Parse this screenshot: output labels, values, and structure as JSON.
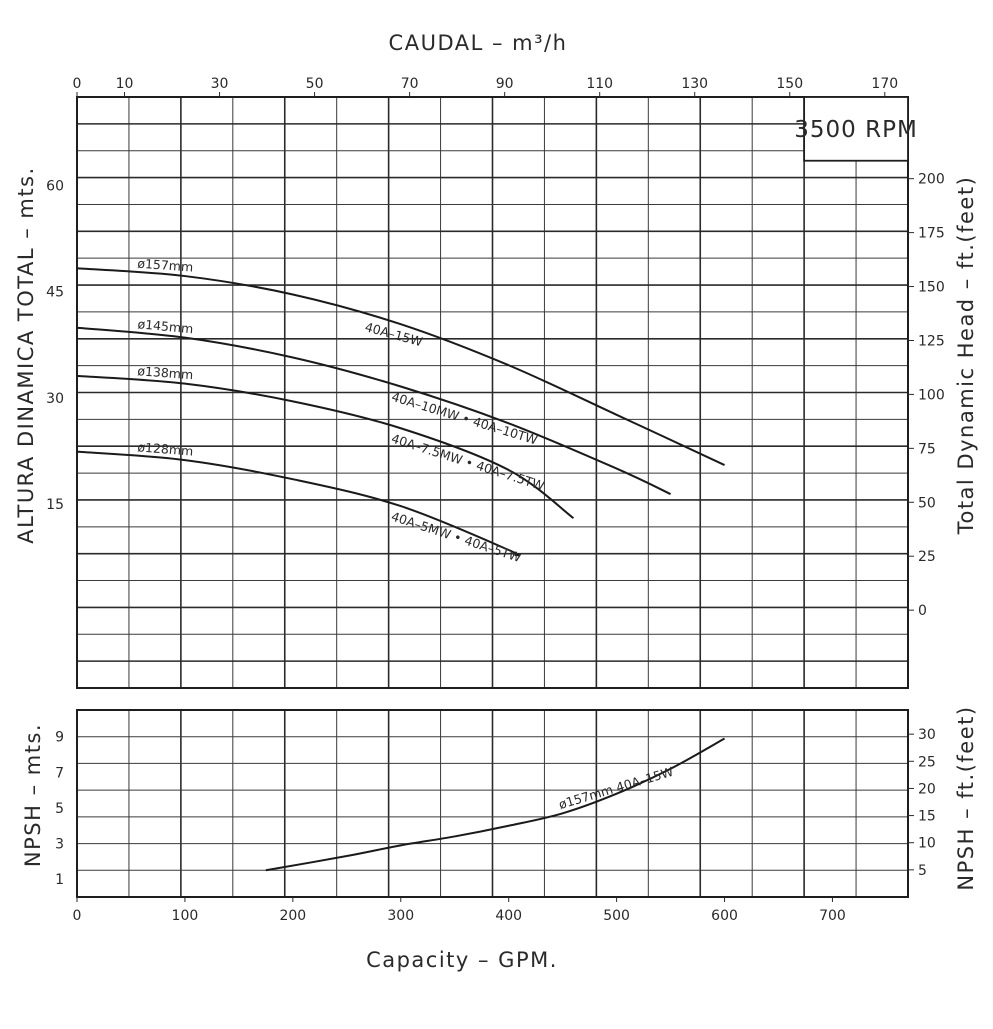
{
  "chart_data": [
    {
      "type": "line",
      "top_axis": {
        "title": "CAUDAL – m³/h",
        "ticks": [
          0,
          10,
          30,
          50,
          70,
          90,
          110,
          130,
          150,
          170
        ]
      },
      "x_axis": {
        "ticks": [
          0,
          100,
          200,
          300,
          400,
          500,
          600,
          700
        ],
        "xlim": [
          0,
          770
        ]
      },
      "left_axis": {
        "title": "ALTURA DINAMICA TOTAL – mts.",
        "ticks": [
          15,
          30,
          45,
          60
        ],
        "ylim": [
          -11,
          72.5
        ]
      },
      "right_axis": {
        "title": "Total Dynamic Head – ft.(feet)",
        "ticks": [
          0,
          25,
          50,
          75,
          100,
          125,
          150,
          175,
          200
        ]
      },
      "grid": true,
      "rpm_label": "3500 RPM",
      "series": [
        {
          "name": "ø157mm",
          "model_label": "40A–15W",
          "x": [
            0,
            100,
            200,
            300,
            400,
            500,
            600
          ],
          "y": [
            48.3,
            47.2,
            44.6,
            40.4,
            34.6,
            27.6,
            20.5
          ]
        },
        {
          "name": "ø145mm",
          "model_label": "40A–10MW • 40A–10TW",
          "x": [
            0,
            100,
            200,
            300,
            400,
            500,
            550
          ],
          "y": [
            39.9,
            38.5,
            35.7,
            31.6,
            26.4,
            20.0,
            16.4
          ]
        },
        {
          "name": "ø138mm",
          "model_label": "40A–7.5MW • 40A–7.5TW",
          "x": [
            0,
            100,
            200,
            300,
            400,
            460
          ],
          "y": [
            33.1,
            32.0,
            29.5,
            25.7,
            19.8,
            13.0
          ]
        },
        {
          "name": "ø128mm",
          "model_label": "40A–5MW • 40A–5TW",
          "x": [
            0,
            100,
            200,
            300,
            400,
            405
          ],
          "y": [
            22.4,
            21.2,
            18.5,
            14.7,
            8.5,
            7.8
          ]
        }
      ]
    },
    {
      "type": "line",
      "x_axis": {
        "title": "Capacity – GPM.",
        "ticks": [
          0,
          100,
          200,
          300,
          400,
          500,
          600,
          700
        ],
        "xlim": [
          0,
          770
        ]
      },
      "left_axis": {
        "title": "NPSH – mts.",
        "ticks": [
          1,
          3,
          5,
          7,
          9
        ],
        "ylim": [
          0,
          10.5
        ]
      },
      "right_axis": {
        "title": "NPSH – ft.(feet)",
        "ticks": [
          5,
          10,
          15,
          20,
          25,
          30
        ]
      },
      "grid": true,
      "series": [
        {
          "name": "ø157mm 40A–15W",
          "x": [
            175,
            250,
            300,
            350,
            400,
            450,
            500,
            550,
            600
          ],
          "y": [
            1.5,
            2.3,
            2.9,
            3.4,
            4.0,
            4.7,
            5.8,
            7.2,
            8.9
          ]
        }
      ]
    }
  ]
}
